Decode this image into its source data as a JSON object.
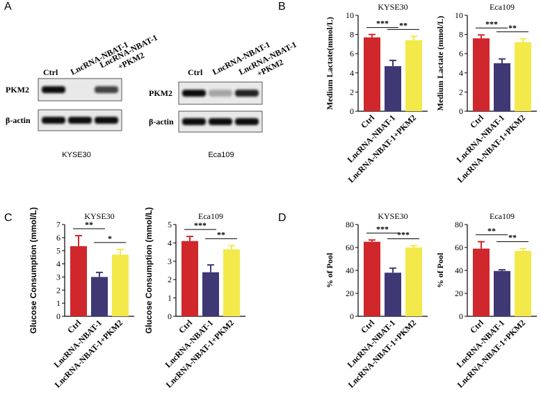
{
  "panel_labels": [
    "A",
    "B",
    "C",
    "D"
  ],
  "western_blots": [
    {
      "cell_line": "KYSE30",
      "lanes": [
        [
          "Ctrl"
        ],
        [
          "LncRNA-NBAT-1"
        ],
        [
          "LncRNA-NBAT-1",
          "+PKM2"
        ]
      ],
      "proteins": [
        "PKM2",
        "β-actin"
      ]
    },
    {
      "cell_line": "Eca109",
      "lanes": [
        [
          "Ctrl"
        ],
        [
          "LncRNA-NBAT-1"
        ],
        [
          "LncRNA-NBAT-1",
          "+PKM2"
        ]
      ],
      "proteins": [
        "PKM2",
        "β-actin"
      ]
    }
  ],
  "chart_data": [
    {
      "type": "bar",
      "title": "KYSE30",
      "ylabel": "Medium Lactate(mmol/L)",
      "categories": [
        "Ctrl",
        "LncRNA-NBAT-1",
        "LncRNA-NBAT-1+PKM2"
      ],
      "values": [
        7.7,
        4.7,
        7.4
      ],
      "errors": [
        0.3,
        0.6,
        0.4
      ],
      "colors": [
        "#d0272c",
        "#3e3875",
        "#f4e94a"
      ],
      "ylim": [
        0,
        10
      ],
      "yticks": [
        0,
        2,
        4,
        6,
        8,
        10
      ],
      "significance": [
        "***",
        "**"
      ]
    },
    {
      "type": "bar",
      "title": "Eca109",
      "ylabel": "Medium Lactate (mmol/L)",
      "categories": [
        "Ctrl",
        "LncRNA-NBAT-1",
        "LncRNA-NBAT-1+PKM2"
      ],
      "values": [
        7.6,
        5.0,
        7.2
      ],
      "errors": [
        0.35,
        0.45,
        0.35
      ],
      "colors": [
        "#d0272c",
        "#3e3875",
        "#f4e94a"
      ],
      "ylim": [
        0,
        10
      ],
      "yticks": [
        0,
        2,
        4,
        6,
        8,
        10
      ],
      "significance": [
        "***",
        "**"
      ]
    },
    {
      "type": "bar",
      "title": "KYSE30",
      "ylabel": "Glucose Consumption (mmol/L)",
      "categories": [
        "Ctrl",
        "LncRNA-NBAT-1",
        "LncRNA-NBAT-1+PKM2"
      ],
      "values": [
        5.35,
        3.0,
        4.7
      ],
      "errors": [
        0.8,
        0.35,
        0.4
      ],
      "colors": [
        "#d0272c",
        "#3e3875",
        "#f4e94a"
      ],
      "ylim": [
        0,
        7
      ],
      "yticks": [
        0,
        1,
        2,
        3,
        4,
        5,
        6,
        7
      ],
      "significance": [
        "**",
        "*"
      ]
    },
    {
      "type": "bar",
      "title": "Eca109",
      "ylabel": "Glucose Consumption (mmol/L)",
      "categories": [
        "Ctrl",
        "LncRNA-NBAT-1",
        "LncRNA-NBAT-1+PKM2"
      ],
      "values": [
        4.1,
        2.4,
        3.65
      ],
      "errors": [
        0.25,
        0.4,
        0.2
      ],
      "colors": [
        "#d0272c",
        "#3e3875",
        "#f4e94a"
      ],
      "ylim": [
        0,
        5
      ],
      "yticks": [
        0,
        1,
        2,
        3,
        4,
        5
      ],
      "significance": [
        "***",
        "**"
      ]
    },
    {
      "type": "bar",
      "title": "KYSE30",
      "ylabel": "% of Pool",
      "categories": [
        "Ctrl",
        "LncRNA-NBAT-1",
        "LncRNA-NBAT-1+PKM2"
      ],
      "values": [
        65,
        38,
        60
      ],
      "errors": [
        1.5,
        4,
        1.5
      ],
      "colors": [
        "#d0272c",
        "#3e3875",
        "#f4e94a"
      ],
      "ylim": [
        0,
        80
      ],
      "yticks": [
        0,
        20,
        40,
        60,
        80
      ],
      "significance": [
        "***",
        "***"
      ]
    },
    {
      "type": "bar",
      "title": "Eca109",
      "ylabel": "% of Pool",
      "categories": [
        "Ctrl",
        "LncRNA-NBAT-1",
        "LncRNA-NBAT-1+PKM2"
      ],
      "values": [
        59,
        39.5,
        57
      ],
      "errors": [
        6,
        1,
        2
      ],
      "colors": [
        "#d0272c",
        "#3e3875",
        "#f4e94a"
      ],
      "ylim": [
        0,
        80
      ],
      "yticks": [
        0,
        20,
        40,
        60,
        80
      ],
      "significance": [
        "**",
        "**"
      ]
    }
  ]
}
